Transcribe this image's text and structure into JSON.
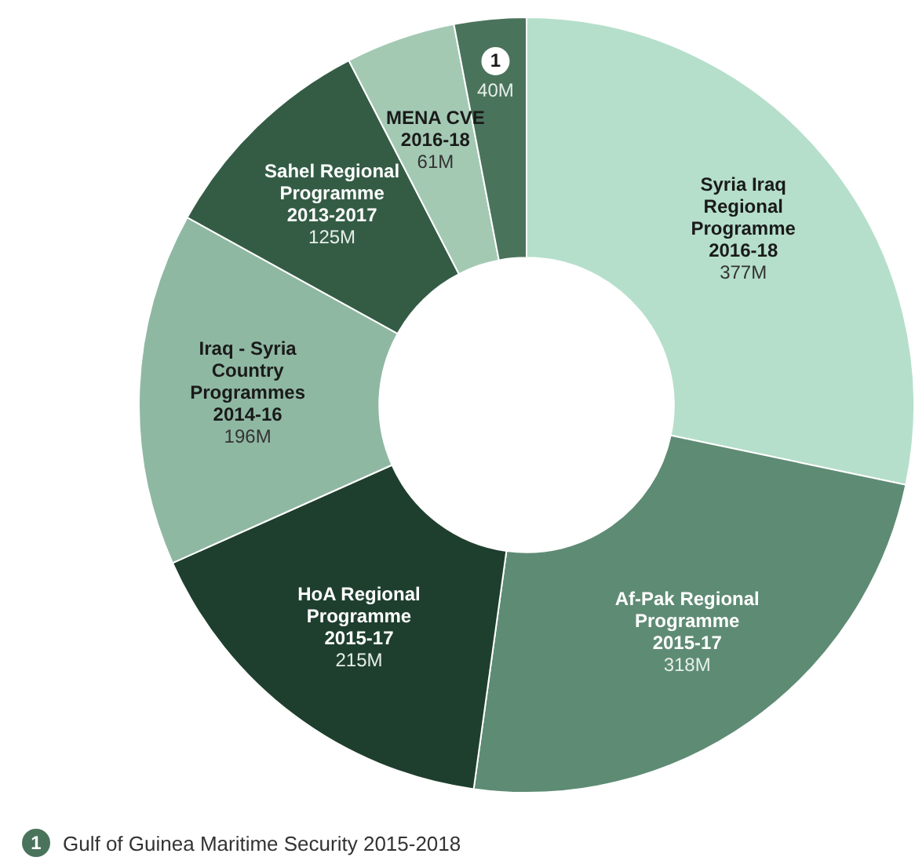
{
  "chart_data": {
    "type": "donut",
    "categories": [
      "Syria Iraq Regional Programme 2016-18",
      "Af-Pak Regional Programme 2015-17",
      "HoA Regional Programme 2015-17",
      "Iraq - Syria Country Programmes 2014-16",
      "Sahel Regional Programme 2013-2017",
      "MENA CVE 2016-18",
      "Gulf of Guinea Maritime Security 2015-2018"
    ],
    "values": [
      377,
      318,
      215,
      196,
      125,
      61,
      40
    ],
    "value_labels": [
      "377M",
      "318M",
      "215M",
      "196M",
      "125M",
      "61M",
      "40M"
    ],
    "colors": [
      "#b5dfcb",
      "#5e8b74",
      "#1f3f2e",
      "#8fb8a2",
      "#345c45",
      "#a3c9b3",
      "#4a735b"
    ],
    "annotations": [
      "1"
    ],
    "legend": "bottom left"
  }
}
